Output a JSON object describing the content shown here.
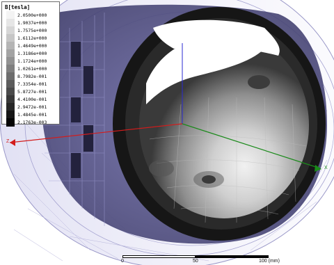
{
  "legend": {
    "title": "B[tesla]",
    "levels": [
      {
        "value": "2.0500e+000",
        "color": "#f4f4f4"
      },
      {
        "value": "1.9037e+000",
        "color": "#e6e6e6"
      },
      {
        "value": "1.7575e+000",
        "color": "#d6d6d6"
      },
      {
        "value": "1.6112e+000",
        "color": "#c6c6c6"
      },
      {
        "value": "1.4649e+000",
        "color": "#b5b5b5"
      },
      {
        "value": "1.3186e+000",
        "color": "#a3a3a3"
      },
      {
        "value": "1.1724e+000",
        "color": "#929292"
      },
      {
        "value": "1.0261e+000",
        "color": "#808080"
      },
      {
        "value": "8.7982e-001",
        "color": "#6e6e6e"
      },
      {
        "value": "7.3354e-001",
        "color": "#5c5c5c"
      },
      {
        "value": "5.8727e-001",
        "color": "#4a4a4a"
      },
      {
        "value": "4.4100e-001",
        "color": "#383838"
      },
      {
        "value": "2.9472e-001",
        "color": "#272727"
      },
      {
        "value": "1.4845e-001",
        "color": "#161616"
      },
      {
        "value": "2.1763e-003",
        "color": "#050505"
      }
    ]
  },
  "axes": {
    "z_label": "Z",
    "x_label": "X",
    "colors": {
      "x": "#1a8a1a",
      "z": "#d21c1c",
      "y": "#2a2ad0"
    }
  },
  "scale_bar": {
    "labels": [
      "0",
      "50",
      "100 (mm)"
    ]
  },
  "colors": {
    "housing": "#8a88c8",
    "bore": "#111111"
  }
}
